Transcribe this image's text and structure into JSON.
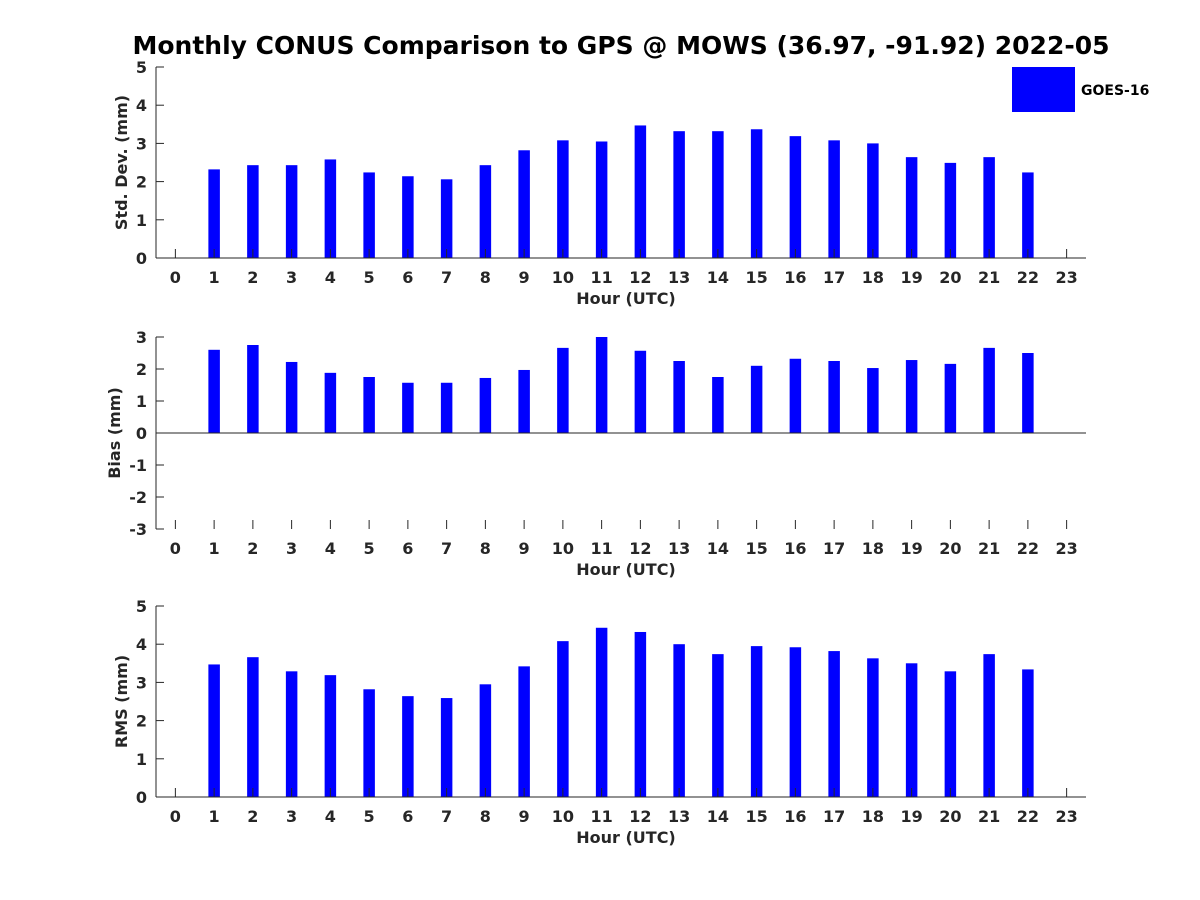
{
  "figure": {
    "title": "Monthly CONUS Comparison to GPS @ MOWS (36.97, -91.92) 2022-05"
  },
  "legend": {
    "entries": [
      {
        "label": "GOES-16",
        "color": "#0000ff"
      }
    ],
    "placement": "top-right"
  },
  "colors": {
    "bar": "#0000ff",
    "axis": "#262626",
    "background": "#ffffff"
  },
  "chart_data": [
    {
      "type": "bar",
      "title": "",
      "xlabel": "Hour (UTC)",
      "ylabel": "Std. Dev. (mm)",
      "xlim": [
        -0.5,
        23.5
      ],
      "ylim": [
        0,
        5
      ],
      "yticks": [
        0,
        1,
        2,
        3,
        4,
        5
      ],
      "grid": false,
      "categories": [
        "0",
        "1",
        "2",
        "3",
        "4",
        "5",
        "6",
        "7",
        "8",
        "9",
        "10",
        "11",
        "12",
        "13",
        "14",
        "15",
        "16",
        "17",
        "18",
        "19",
        "20",
        "21",
        "22",
        "23"
      ],
      "series": [
        {
          "name": "GOES-16",
          "values": [
            null,
            2.32,
            2.43,
            2.43,
            2.58,
            2.24,
            2.14,
            2.06,
            2.43,
            2.82,
            3.08,
            3.05,
            3.47,
            3.32,
            3.32,
            3.37,
            3.19,
            3.08,
            3.0,
            2.64,
            2.49,
            2.64,
            2.24,
            null
          ]
        }
      ]
    },
    {
      "type": "bar",
      "title": "",
      "xlabel": "Hour (UTC)",
      "ylabel": "Bias (mm)",
      "xlim": [
        -0.5,
        23.5
      ],
      "ylim": [
        -3,
        3
      ],
      "yticks": [
        -3,
        -2,
        -1,
        0,
        1,
        2,
        3
      ],
      "grid": false,
      "categories": [
        "0",
        "1",
        "2",
        "3",
        "4",
        "5",
        "6",
        "7",
        "8",
        "9",
        "10",
        "11",
        "12",
        "13",
        "14",
        "15",
        "16",
        "17",
        "18",
        "19",
        "20",
        "21",
        "22",
        "23"
      ],
      "series": [
        {
          "name": "GOES-16",
          "values": [
            null,
            2.6,
            2.75,
            2.22,
            1.88,
            1.75,
            1.57,
            1.57,
            1.72,
            1.97,
            2.66,
            3.0,
            2.57,
            2.25,
            1.75,
            2.1,
            2.32,
            2.25,
            2.03,
            2.28,
            2.16,
            2.66,
            2.5,
            null
          ]
        }
      ]
    },
    {
      "type": "bar",
      "title": "",
      "xlabel": "Hour (UTC)",
      "ylabel": "RMS (mm)",
      "xlim": [
        -0.5,
        23.5
      ],
      "ylim": [
        0,
        5
      ],
      "yticks": [
        0,
        1,
        2,
        3,
        4,
        5
      ],
      "grid": false,
      "categories": [
        "0",
        "1",
        "2",
        "3",
        "4",
        "5",
        "6",
        "7",
        "8",
        "9",
        "10",
        "11",
        "12",
        "13",
        "14",
        "15",
        "16",
        "17",
        "18",
        "19",
        "20",
        "21",
        "22",
        "23"
      ],
      "series": [
        {
          "name": "GOES-16",
          "values": [
            null,
            3.47,
            3.66,
            3.29,
            3.19,
            2.82,
            2.64,
            2.59,
            2.95,
            3.42,
            4.08,
            4.43,
            4.32,
            4.0,
            3.74,
            3.95,
            3.92,
            3.82,
            3.63,
            3.5,
            3.29,
            3.74,
            3.34,
            null
          ]
        }
      ]
    }
  ]
}
